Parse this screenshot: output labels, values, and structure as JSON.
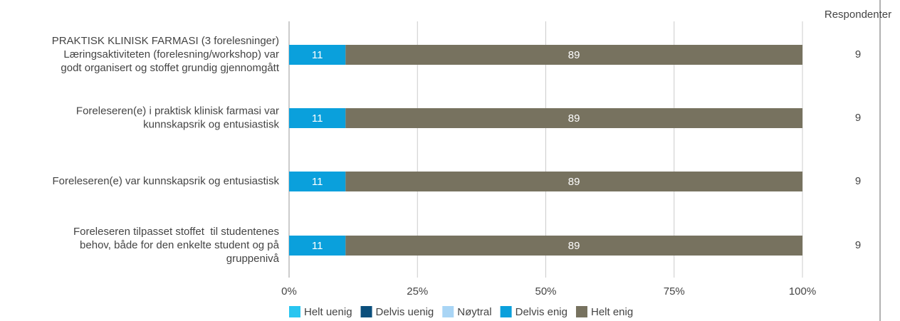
{
  "chart_data": {
    "type": "stacked-bar-horizontal",
    "categories": [
      "PRAKTISK KLINISK FARMASI (3 forelesninger)\nLæringsaktiviteten (forelesning/workshop) var\ngodt organisert og stoffet grundig gjennomgått",
      "Foreleseren(e) i praktisk klinisk farmasi var\nkunnskapsrik og entusiastisk",
      "Foreleseren(e) var kunnskapsrik og entusiastisk",
      "Foreleseren tilpasset stoffet  til studentenes\nbehov, både for den enkelte student og på\ngruppenivå"
    ],
    "series": [
      {
        "name": "Helt uenig",
        "color": "#29c5f0",
        "values": [
          0,
          0,
          0,
          0
        ]
      },
      {
        "name": "Delvis uenig",
        "color": "#0b4f7c",
        "values": [
          0,
          0,
          0,
          0
        ]
      },
      {
        "name": "Nøytral",
        "color": "#a9d5f5",
        "values": [
          0,
          0,
          0,
          0
        ]
      },
      {
        "name": "Delvis enig",
        "color": "#0aa0dc",
        "values": [
          11,
          11,
          11,
          11
        ]
      },
      {
        "name": "Helt enig",
        "color": "#77725f",
        "values": [
          89,
          89,
          89,
          89
        ]
      }
    ],
    "xlim": [
      0,
      100
    ],
    "xticks": [
      {
        "value": 0,
        "label": "0%"
      },
      {
        "value": 25,
        "label": "25%"
      },
      {
        "value": 50,
        "label": "50%"
      },
      {
        "value": 75,
        "label": "75%"
      },
      {
        "value": 100,
        "label": "100%"
      }
    ],
    "grid": true,
    "legend": "bottom",
    "respondents": {
      "label": "Respondenter",
      "values": [
        9,
        9,
        9,
        9
      ]
    }
  }
}
